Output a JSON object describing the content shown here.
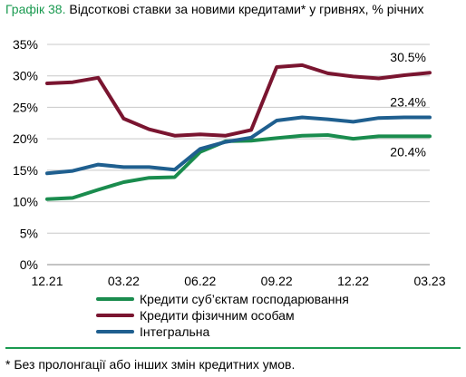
{
  "header": {
    "title_number": "Графік 38.",
    "title_text": "Відсоткові ставки за новими кредитами* у гривнях, % річних"
  },
  "footnote": "* Без пролонгації або інших змін кредитних умов.",
  "colors": {
    "green": "#1a8c4e",
    "maroon": "#7a1530",
    "blue": "#1f5f8f",
    "accent": "#1a9a50"
  },
  "chart_data": {
    "type": "line",
    "x": [
      "12.21",
      "01.22",
      "02.22",
      "03.22",
      "04.22",
      "05.22",
      "06.22",
      "07.22",
      "08.22",
      "09.22",
      "10.22",
      "11.22",
      "12.22",
      "01.23",
      "02.23",
      "03.23"
    ],
    "x_tick_labels": [
      "12.21",
      "03.22",
      "06.22",
      "09.22",
      "12.22",
      "03.23"
    ],
    "ylim": [
      0,
      35
    ],
    "y_ticks": [
      0,
      5,
      10,
      15,
      20,
      25,
      30,
      35
    ],
    "y_tick_labels": [
      "0%",
      "5%",
      "10%",
      "15%",
      "20%",
      "25%",
      "30%",
      "35%"
    ],
    "grid": true,
    "legend_position": "bottom",
    "series": [
      {
        "name": "Кредити суб’єктам господарювання",
        "color": "#1a8c4e",
        "values": [
          10.4,
          10.6,
          11.9,
          13.1,
          13.8,
          13.9,
          17.9,
          19.6,
          19.7,
          20.1,
          20.5,
          20.6,
          20.0,
          20.4,
          20.4,
          20.4
        ],
        "end_label": "20.4%"
      },
      {
        "name": "Кредити фізичним особам",
        "color": "#7a1530",
        "values": [
          28.8,
          29.0,
          29.7,
          23.2,
          21.5,
          20.5,
          20.7,
          20.5,
          21.4,
          31.4,
          31.7,
          30.4,
          29.9,
          29.6,
          30.1,
          30.5
        ],
        "end_label": "30.5%"
      },
      {
        "name": "Інтегральна",
        "color": "#1f5f8f",
        "values": [
          14.5,
          14.9,
          15.9,
          15.5,
          15.5,
          15.1,
          18.4,
          19.5,
          20.2,
          22.9,
          23.4,
          23.1,
          22.7,
          23.3,
          23.4,
          23.4
        ],
        "end_label": "23.4%"
      }
    ]
  }
}
